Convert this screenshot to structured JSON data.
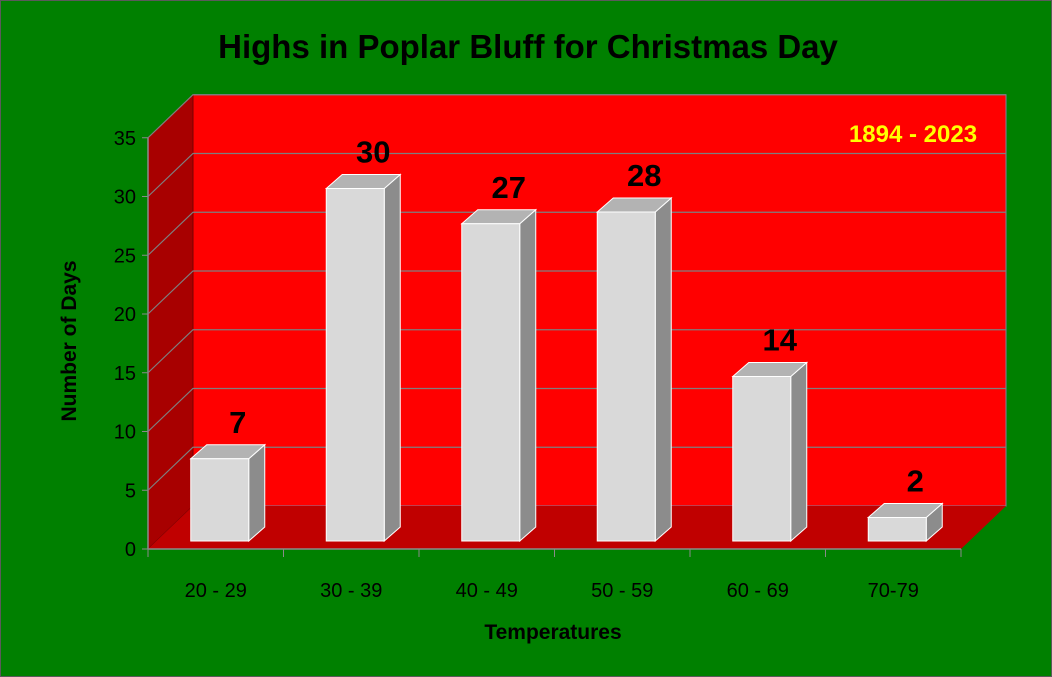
{
  "chart_data": {
    "type": "bar",
    "title": "Highs in Poplar Bluff for Christmas Day",
    "annotation": "1894 - 2023",
    "xlabel": "Temperatures",
    "ylabel": "Number of Days",
    "categories": [
      "20 - 29",
      "30 - 39",
      "40 - 49",
      "50 - 59",
      "60 - 69",
      "70-79"
    ],
    "values": [
      7,
      30,
      27,
      28,
      14,
      2
    ],
    "ylim": [
      0,
      35
    ],
    "yticks": [
      0,
      5,
      10,
      15,
      20,
      25,
      30,
      35
    ],
    "grid": true,
    "three_d": true,
    "legend": "none",
    "colors": {
      "background": "#008000",
      "back_wall": "#ff0000",
      "side_wall": "#a80000",
      "floor": "#c00000",
      "gridline": "#7f7f7f",
      "bar_front": "#d9d9d9",
      "bar_top": "#b3b3b3",
      "bar_side": "#8c8c8c",
      "annotation": "#ffff00"
    }
  }
}
